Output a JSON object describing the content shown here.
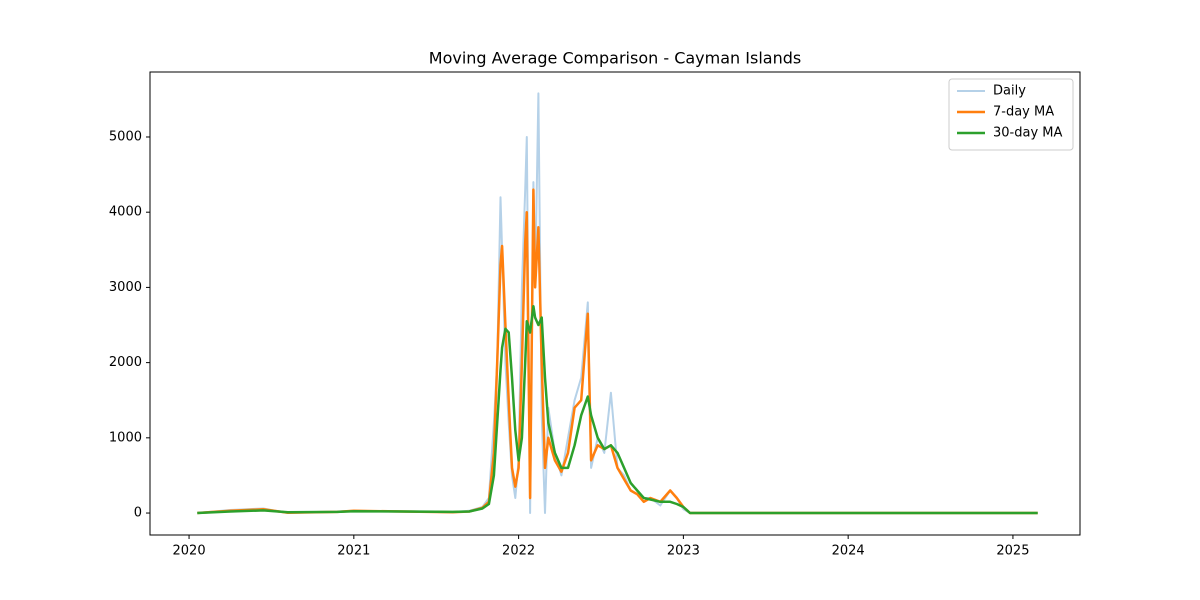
{
  "chart_data": {
    "type": "line",
    "title": "Moving Average Comparison - Cayman Islands",
    "x": [
      2020.05,
      2020.25,
      2020.45,
      2020.6,
      2020.9,
      2021.0,
      2021.3,
      2021.6,
      2021.7,
      2021.78,
      2021.82,
      2021.85,
      2021.87,
      2021.89,
      2021.9,
      2021.92,
      2021.94,
      2021.96,
      2021.98,
      2022.0,
      2022.02,
      2022.04,
      2022.05,
      2022.07,
      2022.09,
      2022.1,
      2022.12,
      2022.14,
      2022.16,
      2022.18,
      2022.22,
      2022.26,
      2022.3,
      2022.34,
      2022.38,
      2022.42,
      2022.44,
      2022.48,
      2022.52,
      2022.56,
      2022.6,
      2022.64,
      2022.68,
      2022.72,
      2022.76,
      2022.8,
      2022.86,
      2022.92,
      2022.96,
      2023.0,
      2023.04,
      2025.15
    ],
    "series": [
      {
        "name": "Daily",
        "color": "#b5d1e8",
        "width": 2,
        "values": [
          0,
          40,
          60,
          0,
          20,
          30,
          20,
          10,
          30,
          80,
          200,
          1200,
          2000,
          4200,
          3500,
          2000,
          1200,
          500,
          200,
          700,
          3000,
          4300,
          5000,
          0,
          4400,
          3000,
          5580,
          1300,
          0,
          1400,
          800,
          500,
          1000,
          1500,
          1800,
          2800,
          600,
          1000,
          800,
          1600,
          600,
          500,
          300,
          250,
          200,
          200,
          100,
          300,
          200,
          50,
          0,
          0
        ]
      },
      {
        "name": "7-day MA",
        "color": "#ff7f0e",
        "width": 2.5,
        "values": [
          0,
          30,
          50,
          5,
          15,
          30,
          20,
          10,
          20,
          70,
          150,
          800,
          2000,
          3300,
          3550,
          2500,
          1500,
          600,
          350,
          600,
          2000,
          3600,
          4000,
          200,
          4300,
          3000,
          3800,
          2000,
          600,
          1000,
          700,
          550,
          800,
          1400,
          1500,
          2650,
          700,
          900,
          850,
          900,
          600,
          450,
          300,
          250,
          150,
          200,
          150,
          300,
          200,
          80,
          0,
          0
        ]
      },
      {
        "name": "30-day MA",
        "color": "#2ca02c",
        "width": 2.5,
        "values": [
          0,
          20,
          35,
          10,
          15,
          25,
          20,
          15,
          20,
          60,
          120,
          500,
          1200,
          1900,
          2200,
          2450,
          2400,
          1800,
          1100,
          700,
          1000,
          2000,
          2550,
          2400,
          2750,
          2600,
          2500,
          2600,
          1800,
          1200,
          800,
          600,
          600,
          900,
          1300,
          1550,
          1300,
          1000,
          850,
          900,
          800,
          600,
          400,
          300,
          200,
          180,
          150,
          150,
          120,
          80,
          0,
          0
        ]
      }
    ],
    "xlim": [
      2019.763,
      2025.407
    ],
    "xticks": [
      2020,
      2021,
      2022,
      2023,
      2024,
      2025
    ],
    "ylim": [
      -292,
      5864
    ],
    "yticks": [
      0,
      1000,
      2000,
      3000,
      4000,
      5000
    ],
    "grid": false,
    "legend": "upper right"
  }
}
